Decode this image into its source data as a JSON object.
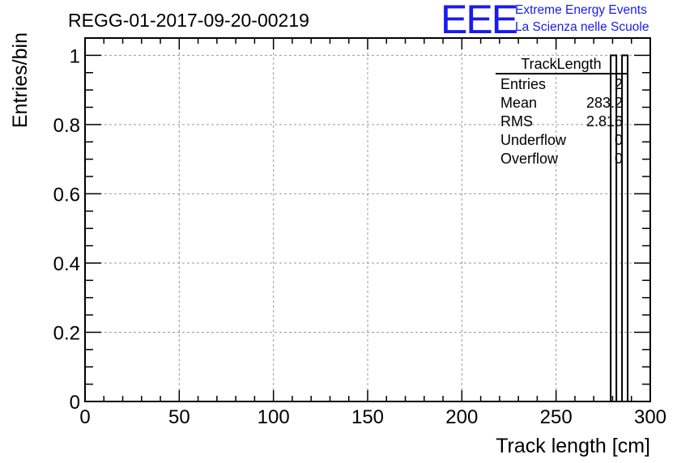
{
  "logo": {
    "letters": "EEE",
    "line1": "Extreme Energy Events",
    "line2": "La Scienza nelle Scuole",
    "color": "#1a1aee"
  },
  "chart_data": {
    "type": "bar",
    "title": "REGG-01-2017-09-20-00219",
    "xlabel": "Track length [cm]",
    "ylabel": "Entries/bin",
    "xlim": [
      0,
      300
    ],
    "ylim": [
      0,
      1.05
    ],
    "grid": true,
    "x_ticks": [
      0,
      50,
      100,
      150,
      200,
      250,
      300
    ],
    "x_tick_labels": [
      "0",
      "50",
      "100",
      "150",
      "200",
      "250",
      "300"
    ],
    "y_ticks": [
      0,
      0.2,
      0.4,
      0.6,
      0.8,
      1
    ],
    "y_tick_labels": [
      "0",
      "0.2",
      "0.4",
      "0.6",
      "0.8",
      "1"
    ],
    "bins": [
      {
        "x_low": 279,
        "x_high": 282,
        "value": 1
      },
      {
        "x_low": 285,
        "x_high": 288,
        "value": 1
      }
    ],
    "stats_box": {
      "title": "TrackLength",
      "placement": "top-right",
      "rows": [
        {
          "label": "Entries",
          "value": "2"
        },
        {
          "label": "Mean",
          "value": "283.2"
        },
        {
          "label": "RMS",
          "value": "2.816"
        },
        {
          "label": "Underflow",
          "value": "0"
        },
        {
          "label": "Overflow",
          "value": "0"
        }
      ]
    }
  }
}
